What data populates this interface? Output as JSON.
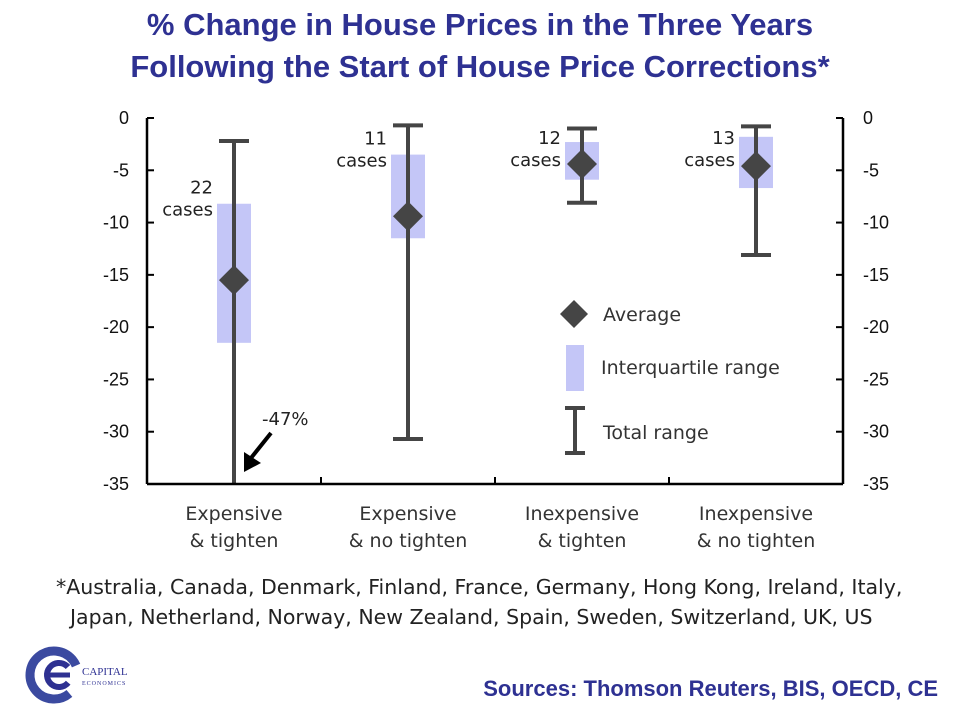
{
  "title": {
    "line1": "% Change in House Prices in the Three Years",
    "line2": "Following the Start of House Price Corrections*"
  },
  "chart_data": {
    "type": "box",
    "ylim": [
      -35,
      0
    ],
    "yticks": [
      0,
      -5,
      -10,
      -15,
      -20,
      -25,
      -30,
      -35
    ],
    "ytick_labels": [
      "0",
      "-5",
      "-10",
      "-15",
      "-20",
      "-25",
      "-30",
      "-35"
    ],
    "categories": [
      {
        "line1": "Expensive",
        "line2": "& tighten"
      },
      {
        "line1": "Expensive",
        "line2": "& no tighten"
      },
      {
        "line1": "Inexpensive",
        "line2": "& tighten"
      },
      {
        "line1": "Inexpensive",
        "line2": "& no tighten"
      }
    ],
    "groups": [
      {
        "cases_count": "22",
        "cases_word": "cases",
        "average": -15.5,
        "iqr": [
          -21.5,
          -8.2
        ],
        "range": [
          -47,
          -2.2
        ]
      },
      {
        "cases_count": "11",
        "cases_word": "cases",
        "average": -9.4,
        "iqr": [
          -11.5,
          -3.5
        ],
        "range": [
          -30.7,
          -0.7
        ]
      },
      {
        "cases_count": "12",
        "cases_word": "cases",
        "average": -4.4,
        "iqr": [
          -5.9,
          -2.3
        ],
        "range": [
          -8.1,
          -1.0
        ]
      },
      {
        "cases_count": "13",
        "cases_word": "cases",
        "average": -4.6,
        "iqr": [
          -6.7,
          -1.8
        ],
        "range": [
          -13.1,
          -0.8
        ]
      }
    ],
    "annotation": {
      "text": "-47%",
      "points_to_group": 0
    },
    "legend": {
      "placement": "lower-right",
      "average": "Average",
      "iqr": "Interquartile range",
      "range": "Total range"
    },
    "colors": {
      "iqr": "#c4c6f7",
      "marker": "#454545",
      "axis": "#000000"
    }
  },
  "footnote": {
    "line1": "*Australia, Canada, Denmark, Finland, France, Germany, Hong Kong, Ireland, Italy,",
    "line2": "Japan, Netherland, Norway, New Zealand, Spain, Sweden, Switzerland, UK, US"
  },
  "sources": "Sources: Thomson Reuters, BIS, OECD, CE",
  "logo": {
    "line1": "CAPITAL",
    "line2": "ECONOMICS"
  }
}
